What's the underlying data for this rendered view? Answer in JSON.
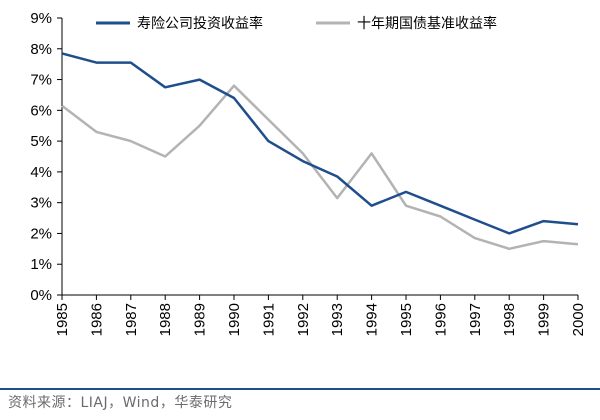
{
  "chart_data": {
    "type": "line",
    "categories": [
      "1985",
      "1986",
      "1987",
      "1988",
      "1989",
      "1990",
      "1991",
      "1992",
      "1993",
      "1994",
      "1995",
      "1996",
      "1997",
      "1998",
      "1999",
      "2000"
    ],
    "series": [
      {
        "name": "寿险公司投资收益率",
        "color": "#1f4e8c",
        "values": [
          7.85,
          7.55,
          7.55,
          6.75,
          7.0,
          6.4,
          5.0,
          4.35,
          3.85,
          2.9,
          3.35,
          2.9,
          2.45,
          2.0,
          2.4,
          2.3
        ]
      },
      {
        "name": "十年期国债基准收益率",
        "color": "#b3b3b3",
        "values": [
          6.15,
          5.3,
          5.0,
          4.5,
          5.5,
          6.8,
          5.7,
          4.6,
          3.15,
          4.6,
          2.9,
          2.55,
          1.85,
          1.5,
          1.75,
          1.65
        ]
      }
    ],
    "y_ticks": [
      "0%",
      "1%",
      "2%",
      "3%",
      "4%",
      "5%",
      "6%",
      "7%",
      "8%",
      "9%"
    ],
    "ylim": [
      0,
      9
    ],
    "xlabel": "",
    "ylabel": "",
    "title": "",
    "legend_position": "top"
  },
  "source": "资料来源：LIAJ，Wind，华泰研究"
}
